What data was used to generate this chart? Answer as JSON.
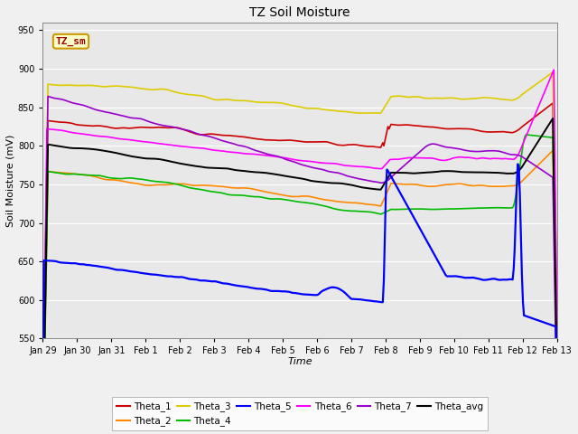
{
  "title": "TZ Soil Moisture",
  "xlabel": "Time",
  "ylabel": "Soil Moisture (mV)",
  "ylim": [
    550,
    960
  ],
  "yticks": [
    550,
    600,
    650,
    700,
    750,
    800,
    850,
    900,
    950
  ],
  "xtick_labels": [
    "Jan 29",
    "Jan 30",
    "Jan 31",
    "Feb 1",
    "Feb 2",
    "Feb 3",
    "Feb 4",
    "Feb 5",
    "Feb 6",
    "Feb 7",
    "Feb 8",
    "Feb 9",
    "Feb 10",
    "Feb 11",
    "Feb 12",
    "Feb 13"
  ],
  "legend_entries": [
    {
      "label": "Theta_1",
      "color": "#cc0000"
    },
    {
      "label": "Theta_2",
      "color": "#ff8800"
    },
    {
      "label": "Theta_3",
      "color": "#ddcc00"
    },
    {
      "label": "Theta_4",
      "color": "#00bb00"
    },
    {
      "label": "Theta_5",
      "color": "#0000ff"
    },
    {
      "label": "Theta_6",
      "color": "#ff00ff"
    },
    {
      "label": "Theta_7",
      "color": "#9900cc"
    },
    {
      "label": "Theta_avg",
      "color": "#000000"
    }
  ],
  "bg_color": "#e8e8e8",
  "grid_color": "#ffffff",
  "legend_box_facecolor": "#ffffcc",
  "legend_box_edgecolor": "#cc9900",
  "legend_box_textcolor": "#990000",
  "fig_facecolor": "#f0f0f0"
}
